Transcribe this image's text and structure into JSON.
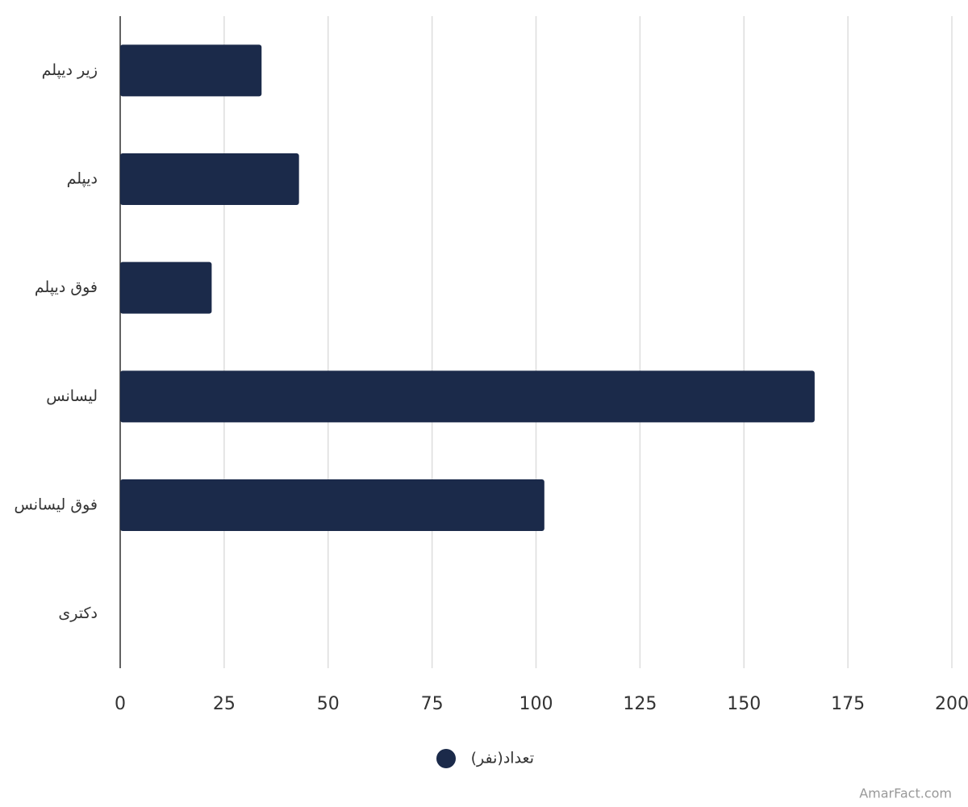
{
  "chart_data": {
    "type": "bar",
    "orientation": "horizontal",
    "categories": [
      "زیر دیپلم",
      "دیپلم",
      "فوق دیپلم",
      "لیسانس",
      "فوق لیسانس",
      "دکتری"
    ],
    "series": [
      {
        "name": "تعداد(نفر)",
        "color": "#1b2a4a",
        "values": [
          34,
          43,
          22,
          167,
          102,
          0
        ]
      }
    ],
    "xlim": [
      0,
      200
    ],
    "xticks": [
      0,
      25,
      50,
      75,
      100,
      125,
      150,
      175,
      200
    ],
    "grid": true,
    "legend": "bottom",
    "watermark": "AmarFact.com"
  }
}
